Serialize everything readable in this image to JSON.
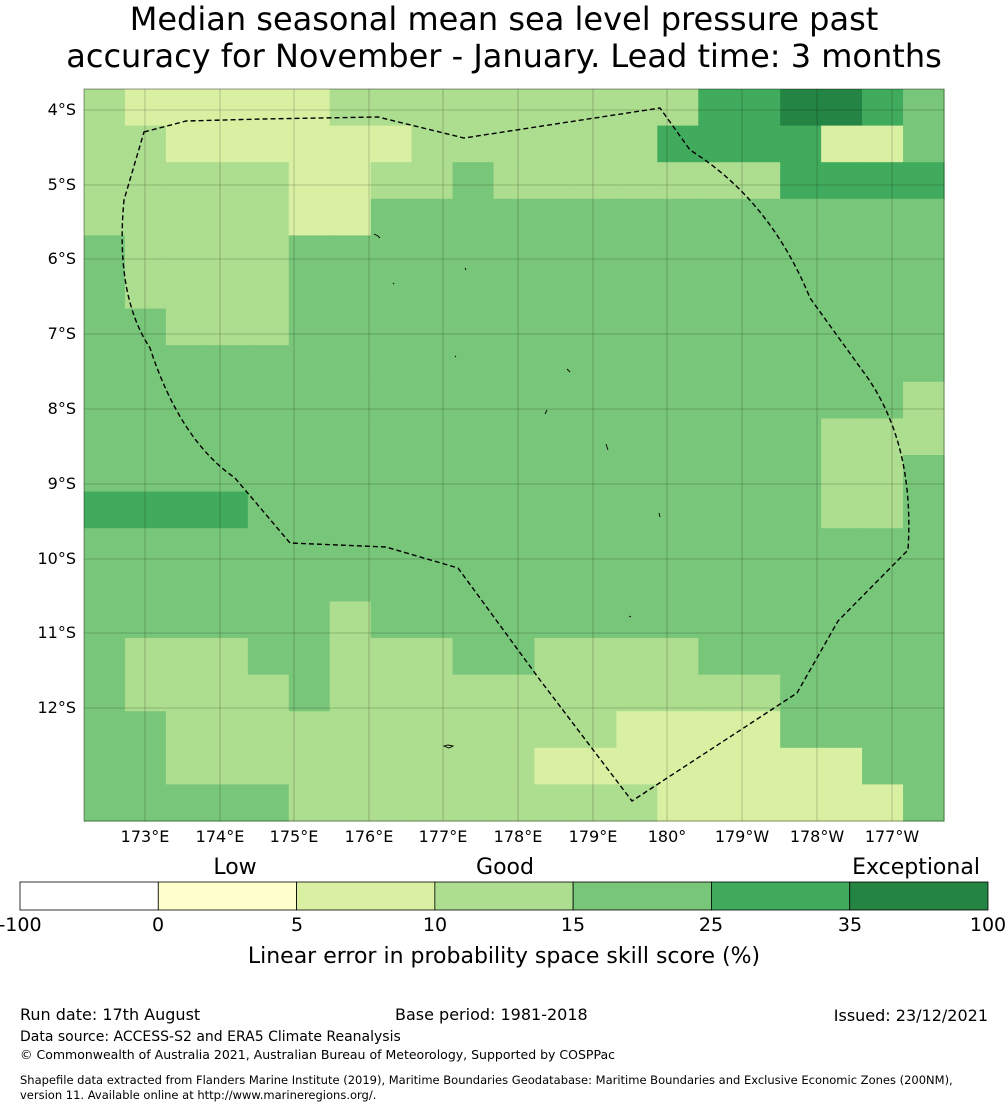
{
  "title_line1": "Median seasonal mean sea level pressure past",
  "title_line2": "accuracy for November - January. Lead time: 3 months",
  "map": {
    "lat_labels": [
      "4°S",
      "5°S",
      "6°S",
      "7°S",
      "8°S",
      "9°S",
      "10°S",
      "11°S",
      "12°S"
    ],
    "lon_labels": [
      "173°E",
      "174°E",
      "175°E",
      "176°E",
      "177°E",
      "178°E",
      "179°E",
      "180°",
      "179°W",
      "178°W",
      "177°W"
    ],
    "grid_rows_north_to_south": [
      "BAAAAABBBBBBBBBDDEEDC",
      "BBAAAAAABBBBBBDDDDAAC",
      "BBBBBAABBCBBBBBBBDDDD",
      "BBBBBAACCCCCCCCCCCCCC",
      "CBBBBCCCCCCCCCCCCCCCC",
      "CBBBBCCCCCCCCCCCCCCCC",
      "CCBBBCCCCCCCCCCCCCCCC",
      "CCCCCCCCCCCCCCCCCCCCC",
      "CCCCCCCCCCCCCCCCCCCCB",
      "CCCCCCCCCCCCCCCCCCBBB",
      "CCCCCCCCCCCCCCCCCCBBC",
      "DDDDCCCCCCCCCCCCCCBBC",
      "CCCCCCCCCCCCCCCCCCCCC",
      "CCCCCCCCCCCCCCCCCCCCC",
      "CCCCCCBCCCCCCCCCCCCCC",
      "CBBBCCBBBCCBBBBCCCCCC",
      "CBBBBCBBBBBBBBBBBCCCC",
      "CCBBBBBBBBBBBAAAACCCC",
      "CCBBBBBBBBBAAAAAAAACC",
      "CCCCCBBBBBBBBBAAAAAAC"
    ],
    "colors": {
      "A": "#d9f0a3",
      "B": "#addd8e",
      "C": "#78c679",
      "D": "#41ab5d",
      "E": "#238443"
    }
  },
  "colorbar": {
    "categories": [
      "Low",
      "Good",
      "Exceptional"
    ],
    "ticks": [
      "-100",
      "0",
      "5",
      "10",
      "15",
      "25",
      "35",
      "100"
    ],
    "colors": [
      "#ffffff",
      "#ffffcc",
      "#d9f0a3",
      "#addd8e",
      "#78c679",
      "#41ab5d",
      "#238443"
    ],
    "label": "Linear error in probability space skill score (%)"
  },
  "footer": {
    "run_date": "Run date: 17th August",
    "base_period": "Base period: 1981-2018",
    "issued": "Issued: 23/12/2021",
    "data_source": "Data source: ACCESS-S2 and ERA5 Climate Reanalysis",
    "copyright": "© Commonwealth of Australia 2021, Australian Bureau of Meteorology, Supported by COSPPac",
    "shapefile_line1": "Shapefile data extracted from Flanders Marine Institute (2019), Maritime Boundaries Geodatabase: Maritime Boundaries and Exclusive Economic Zones (200NM),",
    "shapefile_line2": "version 11. Available online at http://www.marineregions.org/."
  }
}
